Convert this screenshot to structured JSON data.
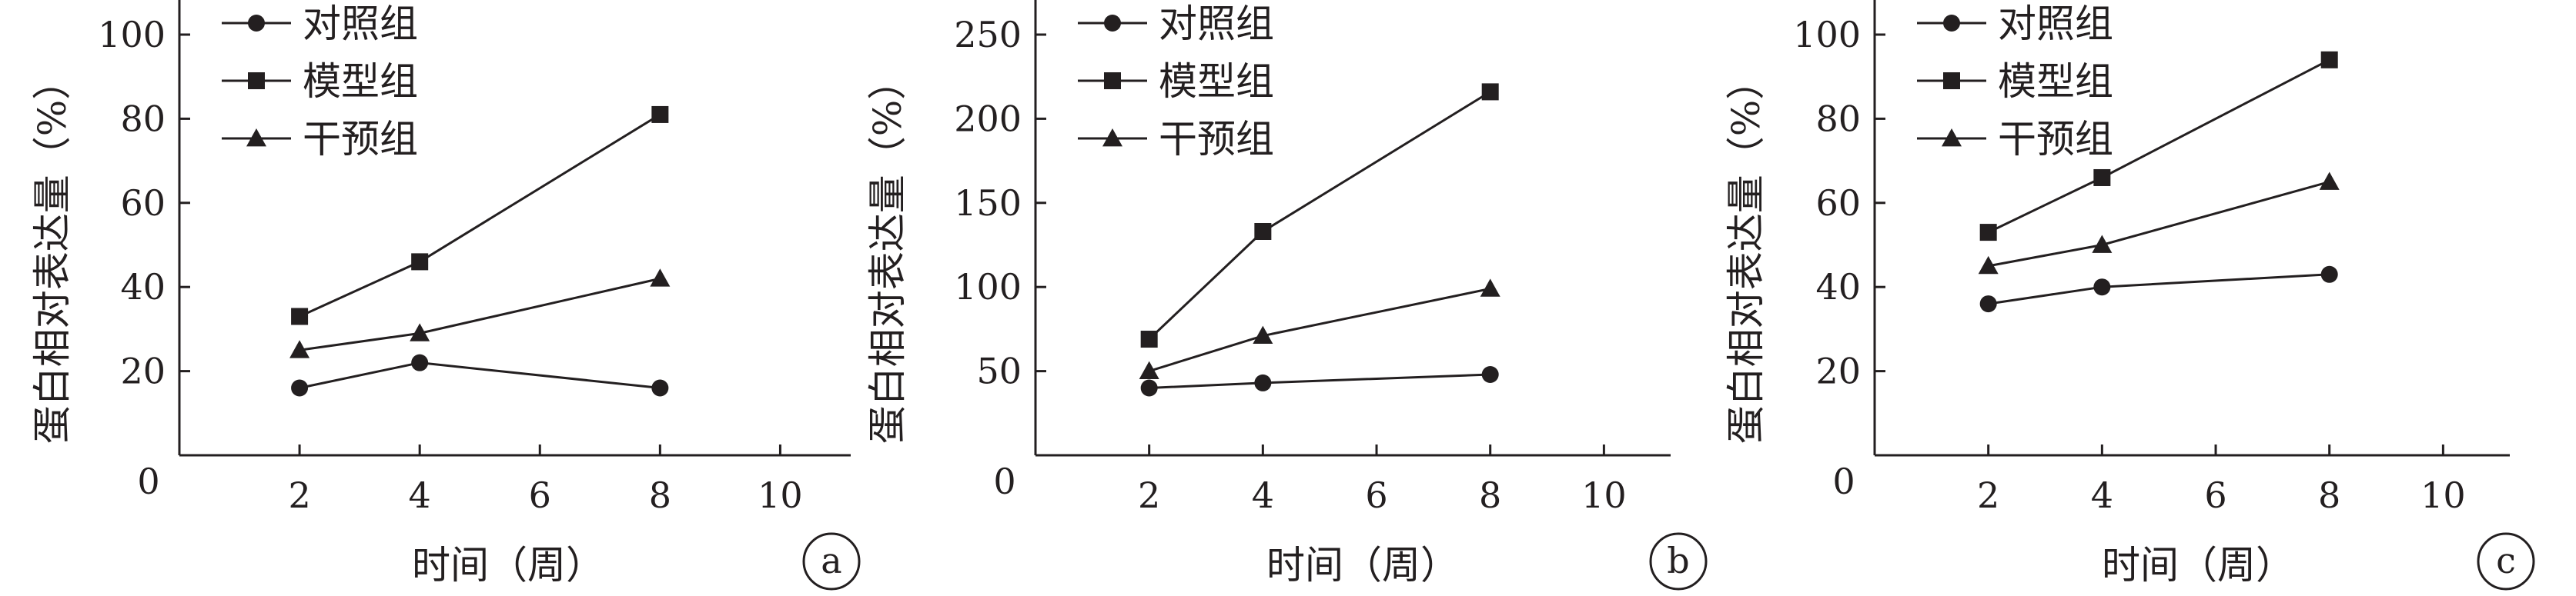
{
  "charts": [
    {
      "panel": "a",
      "chart_data": {
        "type": "line",
        "xlabel": "时间（周）",
        "ylabel": "蛋白相对表达量（%）",
        "xlim": [
          0,
          10
        ],
        "ylim": [
          0,
          100
        ],
        "x_ticks": [
          2,
          4,
          6,
          8,
          10
        ],
        "y_ticks": [
          20,
          40,
          60,
          80,
          100
        ],
        "legend_placement": "top-left",
        "grid": false,
        "x": [
          2,
          4,
          8
        ],
        "series": [
          {
            "name": "对照组",
            "marker": "circle",
            "values": [
              16,
              22,
              16
            ]
          },
          {
            "name": "模型组",
            "marker": "square",
            "values": [
              33,
              46,
              81
            ]
          },
          {
            "name": "干预组",
            "marker": "triangle",
            "values": [
              25,
              29,
              42
            ]
          }
        ]
      }
    },
    {
      "panel": "b",
      "chart_data": {
        "type": "line",
        "xlabel": "时间（周）",
        "ylabel": "蛋白相对表达量（%）",
        "xlim": [
          0,
          10
        ],
        "ylim": [
          0,
          250
        ],
        "x_ticks": [
          2,
          4,
          6,
          8,
          10
        ],
        "y_ticks": [
          50,
          100,
          150,
          200,
          250
        ],
        "legend_placement": "top-left",
        "grid": false,
        "x": [
          2,
          4,
          8
        ],
        "series": [
          {
            "name": "对照组",
            "marker": "circle",
            "values": [
              40,
              43,
              48
            ]
          },
          {
            "name": "模型组",
            "marker": "square",
            "values": [
              69,
              133,
              216
            ]
          },
          {
            "name": "干预组",
            "marker": "triangle",
            "values": [
              50,
              71,
              99
            ]
          }
        ]
      }
    },
    {
      "panel": "c",
      "chart_data": {
        "type": "line",
        "xlabel": "时间（周）",
        "ylabel": "蛋白相对表达量（%）",
        "xlim": [
          0,
          10
        ],
        "ylim": [
          0,
          100
        ],
        "x_ticks": [
          2,
          4,
          6,
          8,
          10
        ],
        "y_ticks": [
          20,
          40,
          60,
          80,
          100
        ],
        "legend_placement": "top-left",
        "grid": false,
        "x": [
          2,
          4,
          8
        ],
        "series": [
          {
            "name": "对照组",
            "marker": "circle",
            "values": [
              36,
              40,
              43
            ]
          },
          {
            "name": "模型组",
            "marker": "square",
            "values": [
              53,
              66,
              94
            ]
          },
          {
            "name": "干预组",
            "marker": "triangle",
            "values": [
              45,
              50,
              65
            ]
          }
        ]
      }
    }
  ],
  "origin_label": "0",
  "colors": {
    "ink": "#231f20",
    "background": "#ffffff"
  }
}
